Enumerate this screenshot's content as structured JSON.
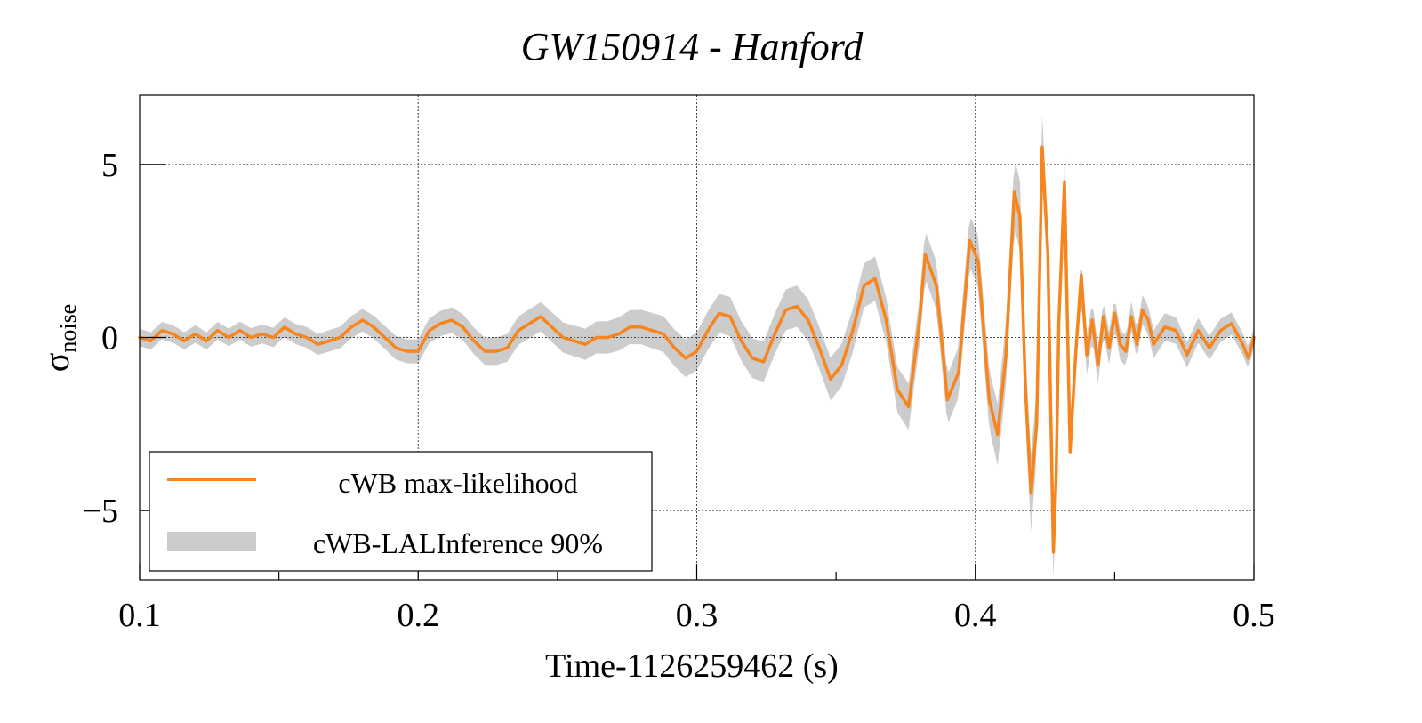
{
  "chart_data": {
    "type": "line",
    "title": "GW150914 - Hanford",
    "xlabel": "Time-1126259462 (s)",
    "ylabel": {
      "symbol": "σ",
      "subscript": "noise"
    },
    "xlim": [
      0.1,
      0.5
    ],
    "ylim": [
      -7,
      7
    ],
    "xticks": [
      {
        "value": 0.1,
        "label": "0.1"
      },
      {
        "value": 0.2,
        "label": "0.2"
      },
      {
        "value": 0.3,
        "label": "0.3"
      },
      {
        "value": 0.4,
        "label": "0.4"
      },
      {
        "value": 0.5,
        "label": "0.5"
      }
    ],
    "yticks": [
      {
        "value": 5,
        "label": "5"
      },
      {
        "value": 0,
        "label": "0"
      },
      {
        "value": -5,
        "label": "−5"
      }
    ],
    "grid": true,
    "legend_position": "bottom-left",
    "series": [
      {
        "name": "cWB max-likelihood",
        "kind": "line",
        "color": "#f7851e",
        "x": [
          0.1,
          0.104,
          0.108,
          0.112,
          0.116,
          0.12,
          0.124,
          0.128,
          0.132,
          0.136,
          0.14,
          0.144,
          0.148,
          0.152,
          0.156,
          0.16,
          0.164,
          0.168,
          0.172,
          0.176,
          0.18,
          0.184,
          0.188,
          0.192,
          0.196,
          0.2,
          0.204,
          0.208,
          0.212,
          0.216,
          0.22,
          0.224,
          0.228,
          0.232,
          0.236,
          0.24,
          0.244,
          0.248,
          0.252,
          0.256,
          0.26,
          0.264,
          0.268,
          0.272,
          0.276,
          0.28,
          0.284,
          0.288,
          0.292,
          0.296,
          0.3,
          0.304,
          0.308,
          0.312,
          0.316,
          0.32,
          0.324,
          0.328,
          0.332,
          0.336,
          0.34,
          0.344,
          0.348,
          0.352,
          0.356,
          0.36,
          0.364,
          0.368,
          0.372,
          0.376,
          0.38,
          0.382,
          0.386,
          0.39,
          0.394,
          0.398,
          0.401,
          0.405,
          0.408,
          0.411,
          0.414,
          0.416,
          0.418,
          0.42,
          0.422,
          0.424,
          0.426,
          0.428,
          0.429,
          0.43,
          0.432,
          0.434,
          0.436,
          0.438,
          0.44,
          0.442,
          0.444,
          0.446,
          0.448,
          0.45,
          0.452,
          0.454,
          0.456,
          0.458,
          0.46,
          0.462,
          0.464,
          0.468,
          0.472,
          0.476,
          0.48,
          0.484,
          0.488,
          0.492,
          0.496,
          0.498,
          0.5
        ],
        "y": [
          0.0,
          -0.1,
          0.2,
          0.1,
          -0.1,
          0.1,
          -0.1,
          0.2,
          0.0,
          0.2,
          0.0,
          0.1,
          0.0,
          0.3,
          0.1,
          0.0,
          -0.2,
          -0.1,
          0.0,
          0.3,
          0.5,
          0.3,
          0.0,
          -0.3,
          -0.4,
          -0.4,
          0.2,
          0.4,
          0.5,
          0.3,
          -0.1,
          -0.4,
          -0.4,
          -0.3,
          0.2,
          0.4,
          0.6,
          0.3,
          0.0,
          -0.1,
          -0.2,
          0.0,
          0.0,
          0.1,
          0.3,
          0.3,
          0.2,
          0.1,
          -0.3,
          -0.6,
          -0.4,
          0.2,
          0.7,
          0.6,
          -0.1,
          -0.6,
          -0.7,
          0.1,
          0.8,
          0.9,
          0.5,
          -0.3,
          -1.2,
          -0.8,
          0.2,
          1.5,
          1.7,
          0.5,
          -1.5,
          -2.0,
          0.5,
          2.4,
          1.5,
          -1.8,
          -1.0,
          2.8,
          2.2,
          -1.8,
          -2.8,
          -0.5,
          4.2,
          3.5,
          -1.5,
          -4.5,
          -2.5,
          5.5,
          2.5,
          -6.2,
          -4.0,
          0.5,
          4.5,
          -3.3,
          -0.5,
          1.8,
          -0.5,
          0.5,
          -0.8,
          0.6,
          -0.3,
          0.7,
          -0.2,
          -0.4,
          0.6,
          -0.2,
          0.8,
          0.5,
          -0.2,
          0.3,
          0.2,
          -0.5,
          0.2,
          -0.3,
          0.2,
          0.4,
          -0.2,
          -0.6,
          0.0
        ]
      },
      {
        "name": "cWB-LALInference 90%",
        "kind": "band",
        "color": "#cccccc",
        "x": [
          0.1,
          0.13,
          0.16,
          0.2,
          0.23,
          0.26,
          0.3,
          0.34,
          0.37,
          0.4,
          0.42,
          0.43,
          0.45,
          0.5
        ],
        "halfwidth": [
          0.25,
          0.25,
          0.3,
          0.35,
          0.4,
          0.45,
          0.55,
          0.6,
          0.65,
          0.75,
          1.1,
          0.7,
          0.45,
          0.3
        ]
      }
    ]
  }
}
